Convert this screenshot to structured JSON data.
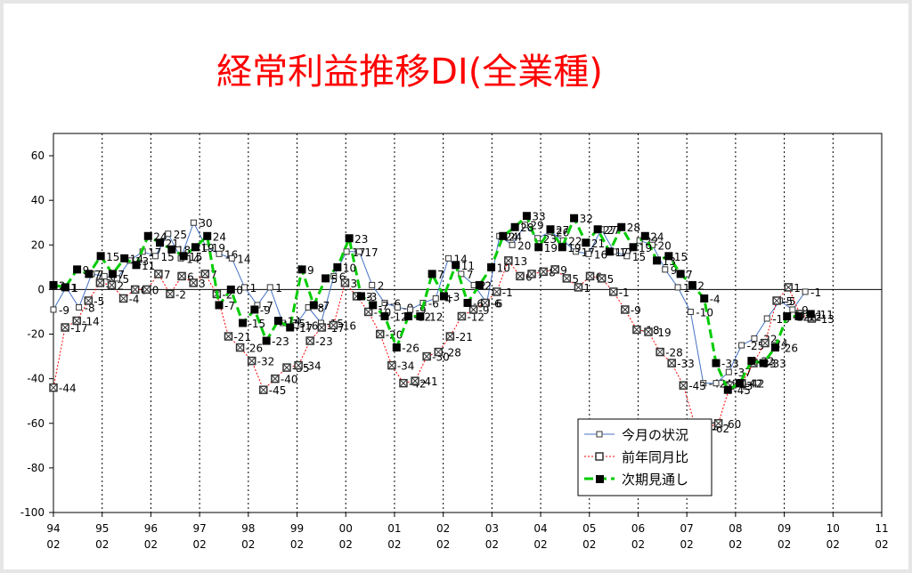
{
  "chart_data": {
    "type": "line",
    "title": "経常利益推移DI(全業種)",
    "title_color": "#ff0000",
    "ylim": [
      -100,
      70
    ],
    "yticks": [
      60,
      40,
      20,
      0,
      -20,
      -40,
      -60,
      -80,
      -100
    ],
    "grid": "vertical dotted lines at each year",
    "legend_position": "bottom-right",
    "x_tick_top": [
      "94",
      "95",
      "96",
      "97",
      "98",
      "99",
      "00",
      "01",
      "02",
      "03",
      "04",
      "05",
      "06",
      "07",
      "08",
      "09",
      "10",
      "11"
    ],
    "x_tick_bottom": [
      "02",
      "02",
      "02",
      "02",
      "02",
      "02",
      "02",
      "02",
      "02",
      "02",
      "02",
      "02",
      "02",
      "02",
      "02",
      "02",
      "02",
      "02"
    ],
    "series": [
      {
        "name": "今月の状況",
        "color": "#4472c4",
        "marker": "open-square",
        "start_year": 1994,
        "values": [
          -9,
          1,
          -8,
          7,
          6,
          5,
          13,
          17,
          15,
          25,
          14,
          30,
          19,
          16,
          14,
          1,
          -7,
          1,
          -15,
          -16,
          -8,
          -15,
          6,
          17,
          17,
          2,
          -6,
          -8,
          -9,
          -6,
          -4,
          14,
          7,
          2,
          -6,
          24,
          20,
          29,
          23,
          26,
          22,
          17,
          16,
          27,
          17,
          15,
          22,
          20,
          9,
          1,
          -10,
          -42,
          -42,
          -37,
          -25,
          -22,
          -13,
          -5,
          -9,
          -1
        ]
      },
      {
        "name": "前年同月比",
        "color": "#ff0000",
        "marker": "hatched-square",
        "start_year": 1994,
        "values": [
          -44,
          -17,
          -14,
          -5,
          3,
          2,
          -4,
          0,
          0,
          7,
          -2,
          6,
          3,
          7,
          -2,
          -21,
          -26,
          -32,
          -45,
          -40,
          -35,
          -34,
          -23,
          -17,
          -16,
          3,
          -3,
          -10,
          -20,
          -34,
          -42,
          -41,
          -30,
          -28,
          -21,
          -12,
          -9,
          -6,
          -1,
          13,
          6,
          7,
          8,
          9,
          5,
          1,
          6,
          5,
          -1,
          -9,
          -18,
          -19,
          -28,
          -33,
          -43,
          -61,
          -62,
          -60,
          -43,
          -42,
          -33,
          -24,
          -5,
          1,
          -11,
          -13
        ]
      },
      {
        "name": "次期見通し",
        "color": "#00cc00",
        "marker": "filled-square",
        "start_year": 1994,
        "values": [
          2,
          1,
          9,
          7,
          15,
          7,
          14,
          11,
          24,
          21,
          18,
          15,
          19,
          24,
          -7,
          0,
          -15,
          -9,
          -23,
          -14,
          -17,
          9,
          -7,
          5,
          10,
          23,
          -3,
          -7,
          -12,
          -26,
          -12,
          -12,
          7,
          -3,
          11,
          -6,
          2,
          10,
          24,
          28,
          33,
          19,
          27,
          19,
          32,
          21,
          27,
          17,
          28,
          19,
          24,
          13,
          15,
          7,
          2,
          -4,
          -33,
          -45,
          -42,
          -32,
          -33,
          -26,
          -12,
          -12,
          -11
        ]
      }
    ]
  }
}
